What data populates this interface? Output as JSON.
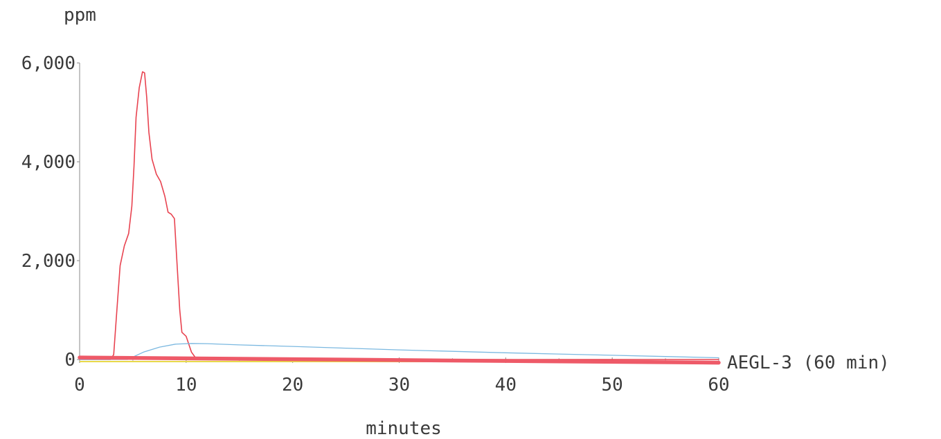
{
  "chart_data": {
    "type": "line",
    "ylabel": "ppm",
    "xlabel": "minutes",
    "xlim": [
      0,
      60
    ],
    "ylim": [
      0,
      6000
    ],
    "x_ticks": [
      0,
      10,
      20,
      30,
      40,
      50,
      60
    ],
    "x_tick_labels": [
      "0",
      "10",
      "20",
      "30",
      "40",
      "50",
      "60"
    ],
    "y_ticks": [
      0,
      2000,
      4000,
      6000
    ],
    "y_tick_labels": [
      "0",
      "2,000",
      "4,000",
      "6,000"
    ],
    "grid": false,
    "legend": "none",
    "series": [
      {
        "color": "#e8424f",
        "points": [
          [
            0,
            0
          ],
          [
            2.9,
            0
          ],
          [
            3.2,
            100
          ],
          [
            3.5,
            1000
          ],
          [
            3.8,
            1900
          ],
          [
            4.2,
            2300
          ],
          [
            4.6,
            2550
          ],
          [
            4.9,
            3100
          ],
          [
            5.1,
            3900
          ],
          [
            5.3,
            4900
          ],
          [
            5.6,
            5500
          ],
          [
            5.9,
            5820
          ],
          [
            6.1,
            5800
          ],
          [
            6.3,
            5300
          ],
          [
            6.5,
            4600
          ],
          [
            6.8,
            4050
          ],
          [
            7.2,
            3750
          ],
          [
            7.6,
            3600
          ],
          [
            8.0,
            3300
          ],
          [
            8.3,
            2980
          ],
          [
            8.6,
            2940
          ],
          [
            8.9,
            2850
          ],
          [
            9.1,
            2100
          ],
          [
            9.4,
            1000
          ],
          [
            9.6,
            550
          ],
          [
            10.0,
            470
          ],
          [
            10.5,
            150
          ],
          [
            11.0,
            0
          ],
          [
            60,
            0
          ]
        ]
      },
      {
        "color": "#7ab8e0",
        "points": [
          [
            0,
            0
          ],
          [
            4.5,
            0
          ],
          [
            6,
            150
          ],
          [
            7.5,
            250
          ],
          [
            9,
            310
          ],
          [
            10.5,
            325
          ],
          [
            12,
            320
          ],
          [
            15,
            295
          ],
          [
            20,
            265
          ],
          [
            25,
            230
          ],
          [
            30,
            195
          ],
          [
            35,
            165
          ],
          [
            40,
            135
          ],
          [
            45,
            110
          ],
          [
            50,
            85
          ],
          [
            55,
            60
          ],
          [
            60,
            35
          ]
        ]
      },
      {
        "color": "#ee5a68",
        "points": [
          [
            0,
            40
          ],
          [
            60,
            -65
          ]
        ]
      }
    ],
    "annotations": [
      {
        "text": "AEGL-3 (60 min)",
        "x": 60,
        "y": 0
      }
    ]
  }
}
